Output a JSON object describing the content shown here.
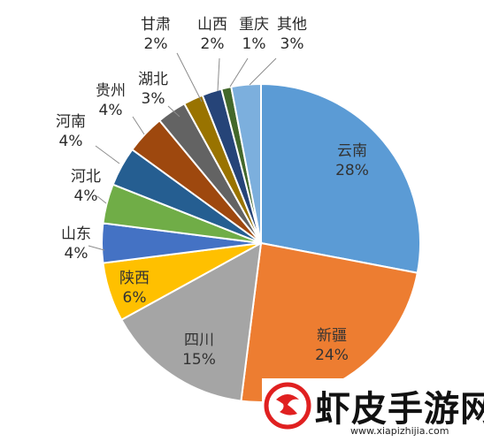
{
  "chart_data": {
    "type": "pie",
    "title": "",
    "slices": [
      {
        "label": "云南",
        "value": 28,
        "value_label": "28%",
        "color": "#5b9bd5"
      },
      {
        "label": "新疆",
        "value": 24,
        "value_label": "24%",
        "color": "#ed7d31"
      },
      {
        "label": "四川",
        "value": 15,
        "value_label": "15%",
        "color": "#a5a5a5"
      },
      {
        "label": "陕西",
        "value": 6,
        "value_label": "6%",
        "color": "#ffc000"
      },
      {
        "label": "山东",
        "value": 4,
        "value_label": "4%",
        "color": "#4472c4"
      },
      {
        "label": "河北",
        "value": 4,
        "value_label": "4%",
        "color": "#70ad47"
      },
      {
        "label": "河南",
        "value": 4,
        "value_label": "4%",
        "color": "#255e91"
      },
      {
        "label": "贵州",
        "value": 4,
        "value_label": "4%",
        "color": "#9e480e"
      },
      {
        "label": "湖北",
        "value": 3,
        "value_label": "3%",
        "color": "#636363"
      },
      {
        "label": "甘肃",
        "value": 2,
        "value_label": "2%",
        "color": "#997300"
      },
      {
        "label": "山西",
        "value": 2,
        "value_label": "2%",
        "color": "#264478"
      },
      {
        "label": "重庆",
        "value": 1,
        "value_label": "1%",
        "color": "#43682b"
      },
      {
        "label": "其他",
        "value": 3,
        "value_label": "3%",
        "color": "#7cafdd"
      }
    ]
  },
  "watermark": {
    "title": "虾皮手游网",
    "url": "www.xiapizhijia.com",
    "logo_icon": "shrimp-logo-icon",
    "logo_color": "#e02020"
  }
}
